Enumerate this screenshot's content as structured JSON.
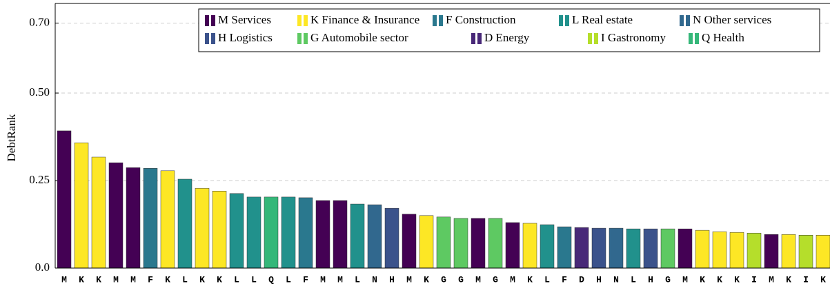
{
  "chart_data": {
    "type": "bar",
    "y_label": "DebtRank",
    "categories": [
      "M",
      "K",
      "K",
      "M",
      "M",
      "F",
      "K",
      "L",
      "K",
      "K",
      "L",
      "L",
      "Q",
      "L",
      "F",
      "M",
      "M",
      "L",
      "N",
      "H",
      "M",
      "K",
      "G",
      "G",
      "M",
      "G",
      "M",
      "K",
      "L",
      "F",
      "D",
      "H",
      "N",
      "L",
      "H",
      "G",
      "M",
      "K",
      "K",
      "K",
      "I",
      "M",
      "K",
      "I",
      "K"
    ],
    "values": [
      0.392,
      0.358,
      0.317,
      0.301,
      0.287,
      0.285,
      0.278,
      0.254,
      0.228,
      0.22,
      0.213,
      0.203,
      0.203,
      0.203,
      0.201,
      0.193,
      0.193,
      0.183,
      0.181,
      0.171,
      0.154,
      0.15,
      0.146,
      0.142,
      0.142,
      0.142,
      0.13,
      0.128,
      0.124,
      0.118,
      0.116,
      0.114,
      0.114,
      0.112,
      0.112,
      0.112,
      0.112,
      0.108,
      0.104,
      0.102,
      0.1,
      0.096,
      0.096,
      0.094,
      0.094
    ],
    "colors": [
      "#440154",
      "#fde725",
      "#fde725",
      "#440154",
      "#440154",
      "#2a788e",
      "#fde725",
      "#21918c",
      "#fde725",
      "#fde725",
      "#21918c",
      "#21918c",
      "#35b779",
      "#21918c",
      "#2a788e",
      "#440154",
      "#440154",
      "#21918c",
      "#31688e",
      "#3b528b",
      "#440154",
      "#fde725",
      "#5ec962",
      "#5ec962",
      "#440154",
      "#5ec962",
      "#440154",
      "#fde725",
      "#21918c",
      "#2a788e",
      "#482878",
      "#3b528b",
      "#31688e",
      "#21918c",
      "#3b528b",
      "#5ec962",
      "#440154",
      "#fde725",
      "#fde725",
      "#fde725",
      "#b5de2b",
      "#440154",
      "#fde725",
      "#b5de2b",
      "#fde725"
    ],
    "legend": [
      {
        "name": "M Services",
        "color": "#440154"
      },
      {
        "name": "K Finance & Insurance",
        "color": "#fde725"
      },
      {
        "name": "F Construction",
        "color": "#2a788e"
      },
      {
        "name": "L Real estate",
        "color": "#21918c"
      },
      {
        "name": "N Other services",
        "color": "#31688e"
      },
      {
        "name": "H Logistics",
        "color": "#3b528b"
      },
      {
        "name": "G Automobile sector",
        "color": "#5ec962"
      },
      {
        "name": "D Energy",
        "color": "#482878"
      },
      {
        "name": "I Gastronomy",
        "color": "#b5de2b"
      },
      {
        "name": "Q Health",
        "color": "#35b779"
      }
    ],
    "ylim": [
      0,
      0.756
    ],
    "yticks": [
      {
        "value": 0,
        "label": "0.0"
      },
      0.25,
      {
        "value": 0.5,
        "label": "0.50"
      },
      {
        "value": 0.7,
        "label": "0.70"
      }
    ],
    "grid": true
  }
}
